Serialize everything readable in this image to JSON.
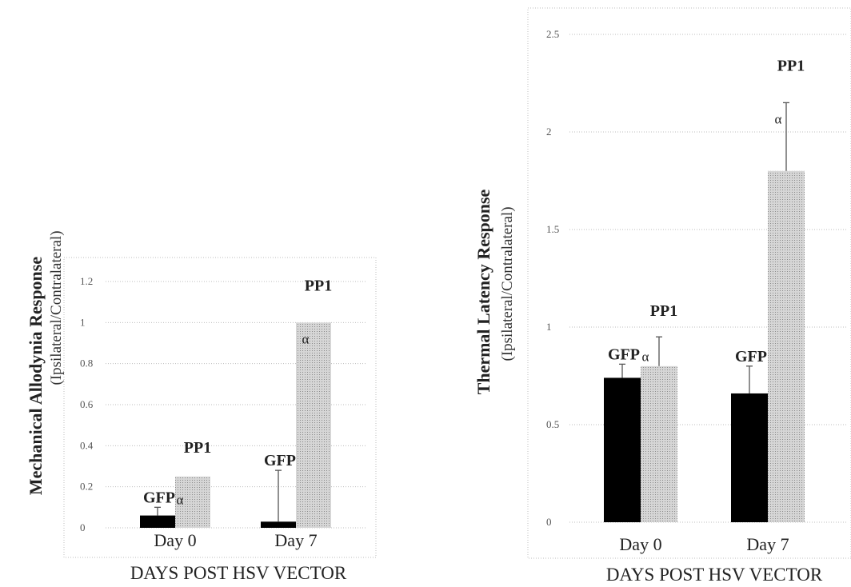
{
  "colors": {
    "GFP": "#000000",
    "PP1": "#c8c8c8",
    "grid": "#bdbdbd",
    "frame": "#bdbdbd",
    "error": "#555555"
  },
  "chart_data": [
    {
      "type": "bar",
      "xlabel": "DAYS POST HSV VECTOR",
      "ylabel": "Mechanical Allodynia Response",
      "ylabel_sub": "(Ipsilateral/Contralateral)",
      "ylim": [
        0,
        1.2
      ],
      "yticks": [
        0,
        0.2,
        0.4,
        0.6,
        0.8,
        1,
        1.2
      ],
      "ytick_labels": [
        "0",
        "0.2",
        "0.4",
        "0.6",
        "0.8",
        "1",
        "1.2"
      ],
      "grid": true,
      "categories": [
        "Day 0",
        "Day 7"
      ],
      "series": [
        {
          "name": "GFP",
          "values": [
            0.06,
            0.03
          ],
          "errors": [
            0.04,
            0.25
          ]
        },
        {
          "name": "PP1",
          "values": [
            0.25,
            1.0
          ],
          "errors": [
            0.0,
            0.0
          ]
        }
      ],
      "annotations": [
        {
          "text": "GFP",
          "category": 0,
          "series": 0
        },
        {
          "text": "α",
          "category": 0,
          "series": 0,
          "suffix": true
        },
        {
          "text": "PP1",
          "category": 0,
          "series": 1
        },
        {
          "text": "GFP",
          "category": 1,
          "series": 0
        },
        {
          "text": "PP1",
          "category": 1,
          "series": 1
        },
        {
          "text": "α",
          "category": 1,
          "series": 1
        }
      ]
    },
    {
      "type": "bar",
      "xlabel": "DAYS POST HSV VECTOR",
      "ylabel": "Thermal Latency Response",
      "ylabel_sub": "(Ipsilateral/Contralateral)",
      "ylim": [
        0,
        2.5
      ],
      "yticks": [
        0,
        0.5,
        1,
        1.5,
        2,
        2.5
      ],
      "ytick_labels": [
        "0",
        "0.5",
        "1",
        "1.5",
        "2",
        "2.5"
      ],
      "grid": true,
      "categories": [
        "Day 0",
        "Day 7"
      ],
      "series": [
        {
          "name": "GFP",
          "values": [
            0.74,
            0.66
          ],
          "errors": [
            0.07,
            0.14
          ]
        },
        {
          "name": "PP1",
          "values": [
            0.8,
            1.8
          ],
          "errors": [
            0.15,
            0.35
          ]
        }
      ],
      "annotations": [
        {
          "text": "GFP",
          "category": 0,
          "series": 0
        },
        {
          "text": "α",
          "category": 0,
          "series": 0,
          "suffix": true
        },
        {
          "text": "PP1",
          "category": 0,
          "series": 1
        },
        {
          "text": "GFP",
          "category": 1,
          "series": 0
        },
        {
          "text": "PP1",
          "category": 1,
          "series": 1
        },
        {
          "text": "α",
          "category": 1,
          "series": 1
        }
      ]
    }
  ]
}
